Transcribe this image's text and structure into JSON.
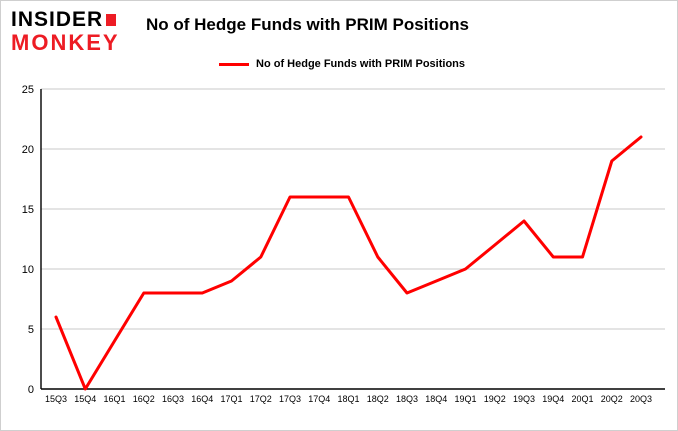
{
  "header": {
    "logo": {
      "line1": "INSIDER",
      "line2": "MONKEY"
    },
    "title": "No of Hedge Funds with PRIM Positions",
    "legend_label": "No of Hedge Funds with PRIM Positions"
  },
  "colors": {
    "line": "#ff0000",
    "logo_red": "#ed1c24",
    "grid": "#c8c8c8",
    "axis": "#000000",
    "tick_text": "#000000"
  },
  "chart_data": {
    "type": "line",
    "title": "No of Hedge Funds with PRIM Positions",
    "categories": [
      "15Q3",
      "15Q4",
      "16Q1",
      "16Q2",
      "16Q3",
      "16Q4",
      "17Q1",
      "17Q2",
      "17Q3",
      "17Q4",
      "18Q1",
      "18Q2",
      "18Q3",
      "18Q4",
      "19Q1",
      "19Q2",
      "19Q3",
      "19Q4",
      "20Q1",
      "20Q2",
      "20Q3"
    ],
    "values": [
      6,
      0,
      4,
      8,
      8,
      8,
      9,
      11,
      16,
      16,
      16,
      11,
      8,
      9,
      10,
      12,
      14,
      11,
      11,
      19,
      21
    ],
    "xlabel": "",
    "ylabel": "",
    "ylim": [
      0,
      25
    ],
    "yticks": [
      0,
      5,
      10,
      15,
      20,
      25
    ],
    "grid": true,
    "legend_position": "top"
  }
}
